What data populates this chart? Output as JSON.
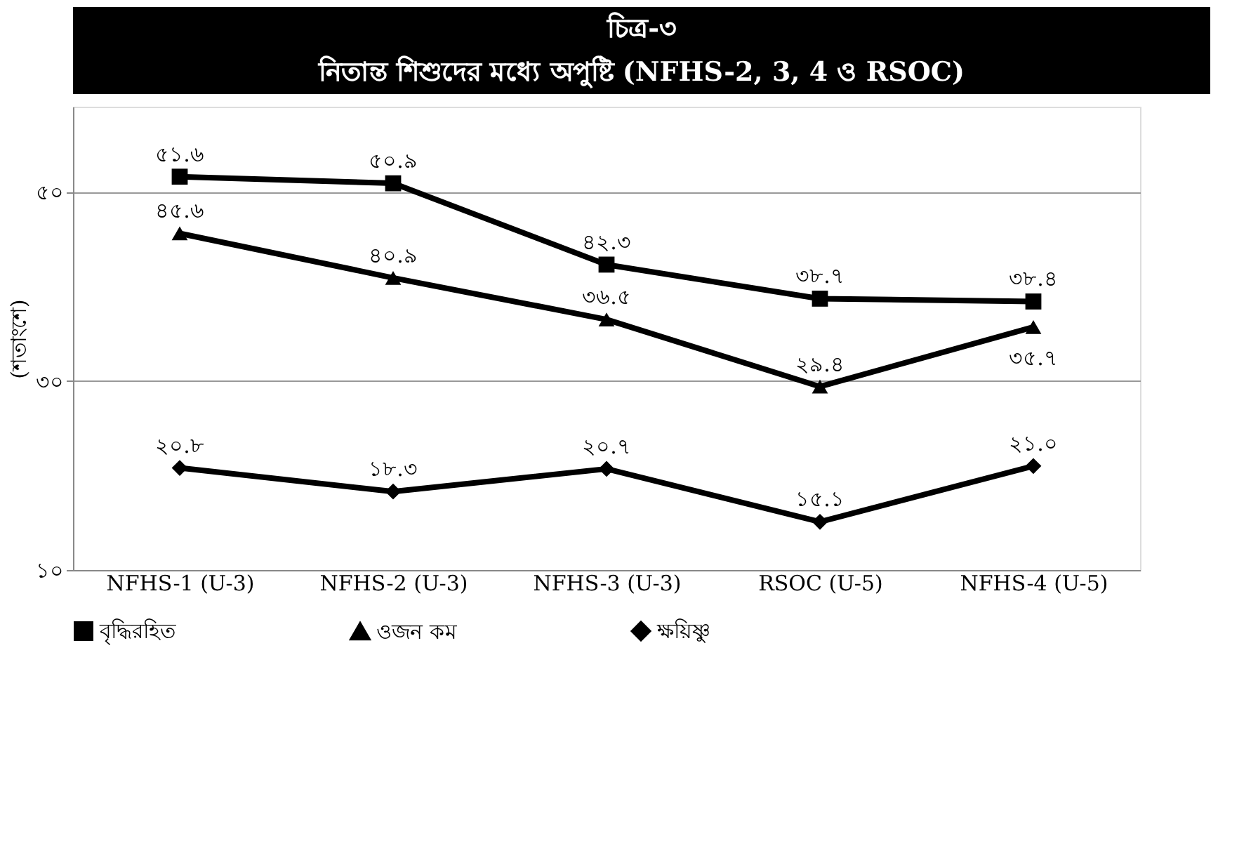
{
  "chart_data": {
    "type": "line",
    "title": "চিত্র-৩",
    "subtitle": "নিতান্ত শিশুদের মধ্যে অপুষ্টি (NFHS-2, 3, 4 ও RSOC)",
    "ylabel": "(শতাংশে)",
    "categories": [
      "NFHS-1 (U-3)",
      "NFHS-2 (U-3)",
      "NFHS-3 (U-3)",
      "RSOC (U-5)",
      "NFHS-4 (U-5)"
    ],
    "series": [
      {
        "name": "বৃদ্ধিরহিত",
        "color": "#000000",
        "marker": "square",
        "values": [
          51.6,
          50.9,
          42.3,
          38.7,
          38.4
        ],
        "value_labels": [
          "৫১.৬",
          "৫০.৯",
          "৪২.৩",
          "৩৮.৭",
          "৩৮.৪"
        ]
      },
      {
        "name": "ওজন কম",
        "color": "#000000",
        "marker": "triangle",
        "values": [
          45.6,
          40.9,
          36.5,
          29.4,
          35.7
        ],
        "value_labels": [
          "৪৫.৬",
          "৪০.৯",
          "৩৬.৫",
          "২৯.৪",
          "৩৫.৭"
        ]
      },
      {
        "name": "ক্ষয়িষ্ণু",
        "color": "#000000",
        "marker": "diamond",
        "values": [
          20.8,
          18.3,
          20.7,
          15.1,
          21.0
        ],
        "value_labels": [
          "২০.৮",
          "১৮.৩",
          "২০.৭",
          "১৫.১",
          "২১.০"
        ]
      }
    ],
    "ylim": [
      10,
      59
    ],
    "yticks": [
      {
        "value": 10,
        "label": "১০"
      },
      {
        "value": 30,
        "label": "৩০"
      },
      {
        "value": 50,
        "label": "৫০"
      }
    ],
    "grid": "y",
    "legend": "bottom",
    "line_style": "solid"
  }
}
